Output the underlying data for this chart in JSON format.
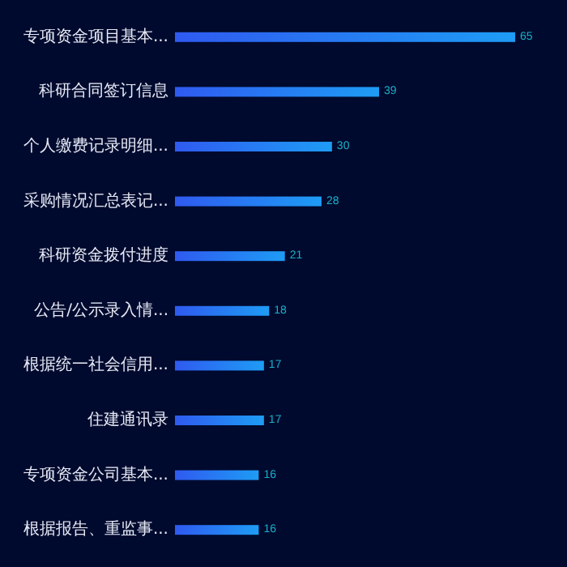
{
  "chart_data": {
    "type": "bar",
    "orientation": "horizontal",
    "categories": [
      "专项资金项目基本...",
      "科研合同签订信息",
      "个人缴费记录明细...",
      "采购情况汇总表记...",
      "科研资金拨付进度",
      "公告/公示录入情...",
      "根据统一社会信用...",
      "住建通讯录",
      "专项资金公司基本...",
      "根据报告、重监事..."
    ],
    "series": [
      {
        "color": "#1e9cf5",
        "values": [
          65,
          39,
          30,
          28,
          21,
          18,
          17,
          17,
          16,
          16
        ]
      }
    ],
    "data_labels": true
  }
}
